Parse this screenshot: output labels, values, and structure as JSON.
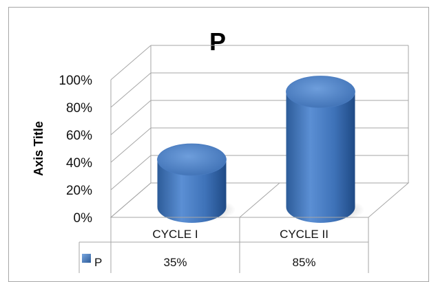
{
  "chart_data": {
    "type": "bar",
    "title": "P",
    "ylabel": "Axis Title",
    "xlabel": "",
    "categories": [
      "CYCLE I",
      "CYCLE II"
    ],
    "series": [
      {
        "name": "P",
        "values": [
          0.35,
          0.85
        ],
        "labels": [
          "35%",
          "85%"
        ]
      }
    ],
    "yticks": [
      "0%",
      "20%",
      "40%",
      "60%",
      "80%",
      "100%"
    ],
    "ylim": [
      0,
      1
    ],
    "grid": true,
    "legend": "data-table",
    "style": "3d-cylinder",
    "colors": {
      "bar": "#4f81bd",
      "gridline": "#a6a6a6"
    }
  }
}
